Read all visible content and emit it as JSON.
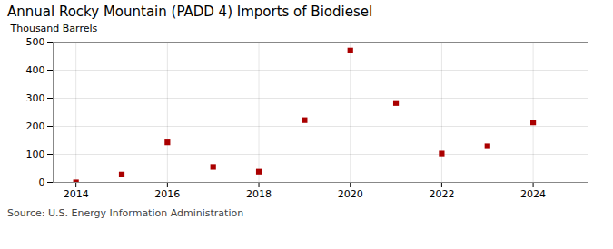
{
  "chart_data": {
    "type": "scatter",
    "title": "Annual Rocky Mountain (PADD 4) Imports of Biodiesel",
    "ylabel": "Thousand Barrels",
    "annotation": "Source: U.S. Energy Information Administration",
    "x": [
      2014,
      2015,
      2016,
      2017,
      2018,
      2019,
      2020,
      2021,
      2022,
      2023,
      2024
    ],
    "values": [
      0,
      28,
      143,
      55,
      38,
      222,
      470,
      283,
      103,
      129,
      214
    ],
    "xlim": [
      2013.5,
      2025.2
    ],
    "ylim": [
      0,
      500
    ],
    "xticks": [
      2014,
      2016,
      2018,
      2020,
      2022,
      2024
    ],
    "yticks": [
      0,
      100,
      200,
      300,
      400,
      500
    ],
    "color": "#aa0000",
    "marker": "square",
    "grid": true
  }
}
